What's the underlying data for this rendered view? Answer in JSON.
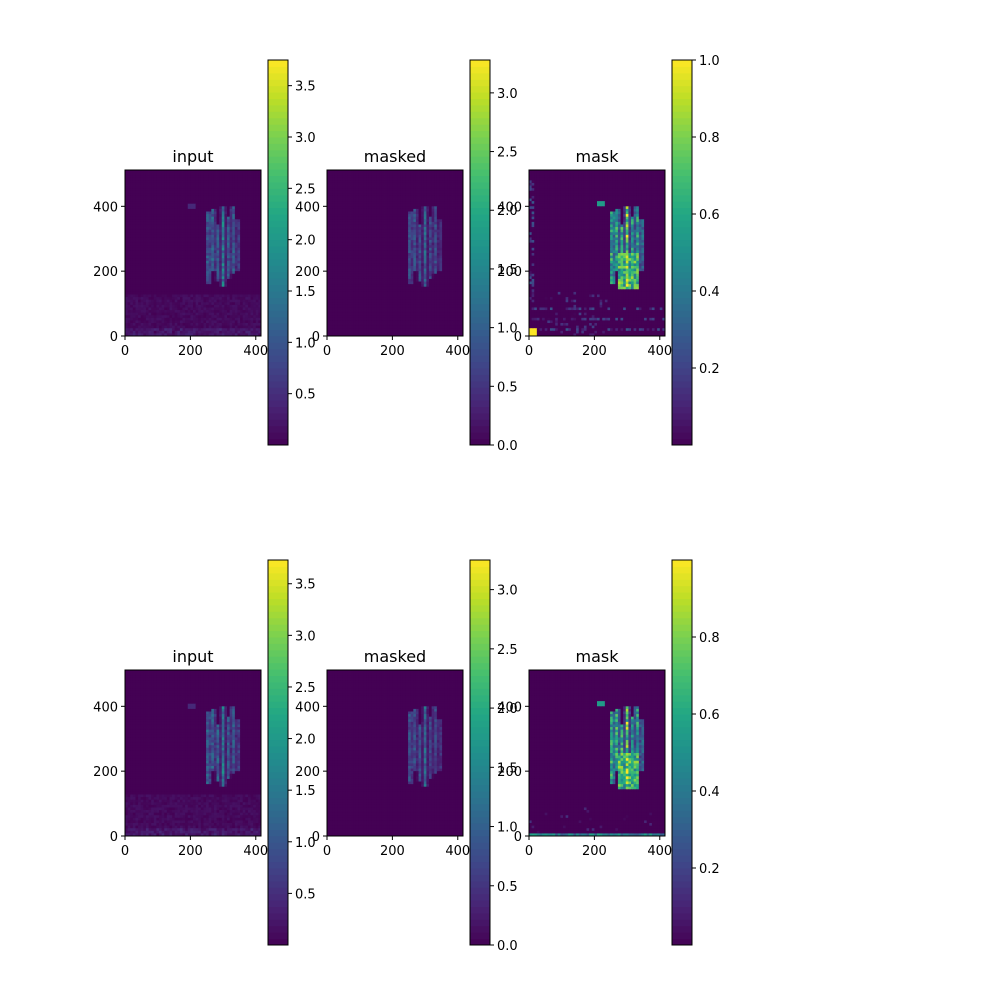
{
  "chart_data": [
    {
      "type": "heatmap",
      "title": "input",
      "colormap": "viridis",
      "xlim": [
        0,
        416
      ],
      "ylim": [
        0,
        512
      ],
      "xticks": [
        0,
        200,
        400
      ],
      "yticks": [
        0,
        200,
        400
      ],
      "colorbar": {
        "vmin": 0.0,
        "vmax": 3.75,
        "ticks": [
          0.5,
          1.0,
          1.5,
          2.0,
          2.5,
          3.0,
          3.5
        ],
        "labels": [
          "0.5",
          "1.0",
          "1.5",
          "2.0",
          "2.5",
          "3.0",
          "3.5"
        ]
      },
      "pattern": "input",
      "seed": 11
    },
    {
      "type": "heatmap",
      "title": "masked",
      "colormap": "viridis",
      "xlim": [
        0,
        416
      ],
      "ylim": [
        0,
        512
      ],
      "xticks": [
        0,
        200,
        400
      ],
      "yticks": [
        0,
        200,
        400
      ],
      "colorbar": {
        "vmin": 0.0,
        "vmax": 3.28,
        "ticks": [
          0.0,
          0.5,
          1.0,
          1.5,
          2.0,
          2.5,
          3.0
        ],
        "labels": [
          "0.0",
          "0.5",
          "1.0",
          "1.5",
          "2.0",
          "2.5",
          "3.0"
        ]
      },
      "pattern": "masked",
      "seed": 23
    },
    {
      "type": "heatmap",
      "title": "mask",
      "colormap": "viridis",
      "xlim": [
        0,
        416
      ],
      "ylim": [
        0,
        512
      ],
      "xticks": [
        0,
        200,
        400
      ],
      "yticks": [
        0,
        200,
        400
      ],
      "colorbar": {
        "vmin": 0.0,
        "vmax": 1.0,
        "ticks": [
          0.2,
          0.4,
          0.6,
          0.8,
          1.0
        ],
        "labels": [
          "0.2",
          "0.4",
          "0.6",
          "0.8",
          "1.0"
        ]
      },
      "pattern": "mask1",
      "seed": 37
    },
    {
      "type": "heatmap",
      "title": "input",
      "colormap": "viridis",
      "xlim": [
        0,
        416
      ],
      "ylim": [
        0,
        512
      ],
      "xticks": [
        0,
        200,
        400
      ],
      "yticks": [
        0,
        200,
        400
      ],
      "colorbar": {
        "vmin": 0.0,
        "vmax": 3.73,
        "ticks": [
          0.5,
          1.0,
          1.5,
          2.0,
          2.5,
          3.0,
          3.5
        ],
        "labels": [
          "0.5",
          "1.0",
          "1.5",
          "2.0",
          "2.5",
          "3.0",
          "3.5"
        ]
      },
      "pattern": "input",
      "seed": 51
    },
    {
      "type": "heatmap",
      "title": "masked",
      "colormap": "viridis",
      "xlim": [
        0,
        416
      ],
      "ylim": [
        0,
        512
      ],
      "xticks": [
        0,
        200,
        400
      ],
      "yticks": [
        0,
        200,
        400
      ],
      "colorbar": {
        "vmin": 0.0,
        "vmax": 3.25,
        "ticks": [
          0.0,
          0.5,
          1.0,
          1.5,
          2.0,
          2.5,
          3.0
        ],
        "labels": [
          "0.0",
          "0.5",
          "1.0",
          "1.5",
          "2.0",
          "2.5",
          "3.0"
        ]
      },
      "pattern": "masked",
      "seed": 63
    },
    {
      "type": "heatmap",
      "title": "mask",
      "colormap": "viridis",
      "xlim": [
        0,
        416
      ],
      "ylim": [
        0,
        512
      ],
      "xticks": [
        0,
        200,
        400
      ],
      "yticks": [
        0,
        200,
        400
      ],
      "colorbar": {
        "vmin": 0.0,
        "vmax": 1.0,
        "ticks": [
          0.2,
          0.4,
          0.6,
          0.8
        ],
        "labels": [
          "0.2",
          "0.4",
          "0.6",
          "0.8"
        ]
      },
      "pattern": "mask2",
      "seed": 79
    }
  ]
}
